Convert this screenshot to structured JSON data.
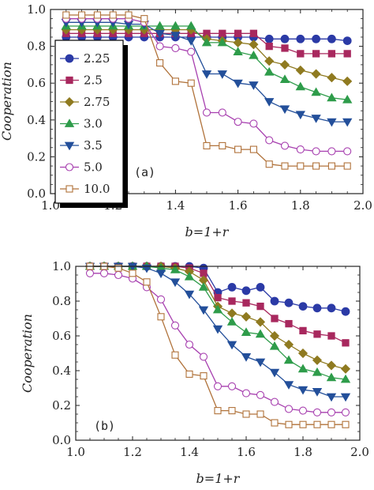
{
  "chart_data": [
    {
      "type": "line",
      "panel_label": "(a)",
      "xlabel": "b=1+r",
      "ylabel": "Cooperation",
      "xlim": [
        1.0,
        2.0
      ],
      "ylim": [
        0.0,
        1.0
      ],
      "xticks": [
        "1.0",
        "1.2",
        "1.4",
        "1.6",
        "1.8",
        "2.0"
      ],
      "yticks": [
        "0.0",
        "0.2",
        "0.4",
        "0.6",
        "0.8",
        "1.0"
      ],
      "legend_position": "left",
      "x": [
        1.05,
        1.1,
        1.15,
        1.2,
        1.25,
        1.3,
        1.35,
        1.4,
        1.45,
        1.5,
        1.55,
        1.6,
        1.65,
        1.7,
        1.75,
        1.8,
        1.85,
        1.9,
        1.95
      ],
      "series": [
        {
          "name": "2.25",
          "color": "#2b3aa6",
          "marker": "circle-filled",
          "values": [
            0.85,
            0.85,
            0.85,
            0.85,
            0.85,
            0.85,
            0.85,
            0.85,
            0.85,
            0.85,
            0.85,
            0.85,
            0.85,
            0.84,
            0.84,
            0.84,
            0.84,
            0.84,
            0.83
          ]
        },
        {
          "name": "2.5",
          "color": "#a8285e",
          "marker": "square-filled",
          "values": [
            0.87,
            0.87,
            0.87,
            0.87,
            0.87,
            0.87,
            0.87,
            0.87,
            0.87,
            0.87,
            0.87,
            0.87,
            0.87,
            0.8,
            0.79,
            0.76,
            0.76,
            0.76,
            0.76
          ]
        },
        {
          "name": "2.75",
          "color": "#8f7a20",
          "marker": "diamond-filled",
          "values": [
            0.89,
            0.89,
            0.89,
            0.89,
            0.89,
            0.89,
            0.89,
            0.89,
            0.89,
            0.84,
            0.83,
            0.82,
            0.81,
            0.72,
            0.7,
            0.67,
            0.65,
            0.63,
            0.61
          ]
        },
        {
          "name": "3.0",
          "color": "#2e9c4a",
          "marker": "triangle-up-filled",
          "values": [
            0.91,
            0.91,
            0.91,
            0.91,
            0.91,
            0.91,
            0.91,
            0.91,
            0.91,
            0.82,
            0.82,
            0.77,
            0.75,
            0.66,
            0.62,
            0.58,
            0.55,
            0.52,
            0.51
          ]
        },
        {
          "name": "3.5",
          "color": "#234f9a",
          "marker": "triangle-down-filled",
          "values": [
            0.93,
            0.93,
            0.93,
            0.93,
            0.92,
            0.92,
            0.87,
            0.86,
            0.83,
            0.65,
            0.65,
            0.6,
            0.59,
            0.5,
            0.46,
            0.43,
            0.41,
            0.39,
            0.39
          ]
        },
        {
          "name": "5.0",
          "color": "#a73faf",
          "marker": "circle-open",
          "values": [
            0.95,
            0.95,
            0.95,
            0.95,
            0.95,
            0.93,
            0.8,
            0.79,
            0.77,
            0.44,
            0.44,
            0.39,
            0.38,
            0.29,
            0.26,
            0.24,
            0.23,
            0.23,
            0.23
          ]
        },
        {
          "name": "10.0",
          "color": "#b0723a",
          "marker": "square-open",
          "values": [
            0.97,
            0.97,
            0.97,
            0.97,
            0.97,
            0.95,
            0.71,
            0.61,
            0.6,
            0.26,
            0.26,
            0.24,
            0.24,
            0.16,
            0.15,
            0.15,
            0.15,
            0.15,
            0.15
          ]
        }
      ]
    },
    {
      "type": "line",
      "panel_label": "(b)",
      "xlabel": "b=1+r",
      "ylabel": "Cooperation",
      "xlim": [
        1.0,
        2.0
      ],
      "ylim": [
        0.0,
        1.0
      ],
      "xticks": [
        "1.0",
        "1.2",
        "1.4",
        "1.6",
        "1.8",
        "2.0"
      ],
      "yticks": [
        "0.0",
        "0.2",
        "0.4",
        "0.6",
        "0.8",
        "1.0"
      ],
      "x": [
        1.05,
        1.1,
        1.15,
        1.2,
        1.25,
        1.3,
        1.35,
        1.4,
        1.45,
        1.5,
        1.55,
        1.6,
        1.65,
        1.7,
        1.75,
        1.8,
        1.85,
        1.9,
        1.95
      ],
      "series": [
        {
          "name": "2.25",
          "color": "#2b3aa6",
          "marker": "circle-filled",
          "values": [
            1.0,
            1.0,
            1.0,
            1.0,
            1.0,
            1.0,
            1.0,
            1.0,
            0.99,
            0.85,
            0.88,
            0.86,
            0.88,
            0.8,
            0.79,
            0.77,
            0.76,
            0.76,
            0.74
          ]
        },
        {
          "name": "2.5",
          "color": "#a8285e",
          "marker": "square-filled",
          "values": [
            1.0,
            1.0,
            1.0,
            1.0,
            1.0,
            1.0,
            1.0,
            0.99,
            0.96,
            0.82,
            0.8,
            0.79,
            0.77,
            0.7,
            0.67,
            0.63,
            0.61,
            0.6,
            0.56
          ]
        },
        {
          "name": "2.75",
          "color": "#8f7a20",
          "marker": "diamond-filled",
          "values": [
            1.0,
            1.0,
            1.0,
            1.0,
            1.0,
            1.0,
            0.99,
            0.97,
            0.92,
            0.77,
            0.73,
            0.71,
            0.68,
            0.6,
            0.55,
            0.5,
            0.46,
            0.43,
            0.41
          ]
        },
        {
          "name": "3.0",
          "color": "#2e9c4a",
          "marker": "triangle-up-filled",
          "values": [
            1.0,
            1.0,
            1.0,
            1.0,
            1.0,
            0.99,
            0.98,
            0.94,
            0.88,
            0.75,
            0.68,
            0.62,
            0.61,
            0.54,
            0.46,
            0.41,
            0.39,
            0.36,
            0.35
          ]
        },
        {
          "name": "3.5",
          "color": "#234f9a",
          "marker": "triangle-down-filled",
          "values": [
            1.0,
            1.0,
            1.0,
            1.0,
            0.99,
            0.96,
            0.91,
            0.84,
            0.75,
            0.64,
            0.55,
            0.48,
            0.45,
            0.39,
            0.32,
            0.29,
            0.28,
            0.25,
            0.25
          ]
        },
        {
          "name": "5.0",
          "color": "#a73faf",
          "marker": "circle-open",
          "values": [
            0.96,
            0.96,
            0.95,
            0.93,
            0.88,
            0.81,
            0.66,
            0.55,
            0.48,
            0.31,
            0.31,
            0.27,
            0.26,
            0.22,
            0.18,
            0.17,
            0.16,
            0.16,
            0.16
          ]
        },
        {
          "name": "10.0",
          "color": "#b0723a",
          "marker": "square-open",
          "values": [
            1.0,
            1.0,
            0.99,
            0.96,
            0.91,
            0.71,
            0.49,
            0.38,
            0.37,
            0.17,
            0.17,
            0.15,
            0.15,
            0.1,
            0.09,
            0.09,
            0.09,
            0.09,
            0.09
          ]
        }
      ]
    }
  ]
}
